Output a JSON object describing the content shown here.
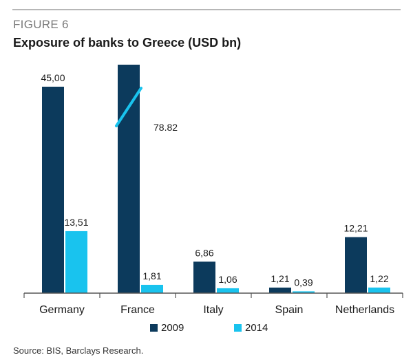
{
  "figure_label": "FIGURE 6",
  "source": "Source: BIS, Barclays Research.",
  "colors": {
    "s2009": "#0c3a5c",
    "s2014": "#19c3ee",
    "axis": "#555555",
    "rule": "#b7b7b7"
  },
  "chart_data": {
    "type": "bar",
    "title": "Exposure of banks to Greece (USD bn)",
    "xlabel": "",
    "ylabel": "",
    "categories": [
      "Germany",
      "France",
      "Italy",
      "Spain",
      "Netherlands"
    ],
    "series": [
      {
        "name": "2009",
        "values": [
          45.0,
          78.82,
          6.86,
          1.21,
          12.21
        ],
        "labels": [
          "45,00",
          "78.82",
          "6,86",
          "1,21",
          "12,21"
        ]
      },
      {
        "name": "2014",
        "values": [
          13.51,
          1.81,
          1.06,
          0.39,
          1.22
        ],
        "labels": [
          "13,51",
          "1,81",
          "1,06",
          "0,39",
          "1,22"
        ]
      }
    ],
    "ylim": [
      0,
      55
    ],
    "axis_break": {
      "category": "France",
      "series": "2009"
    },
    "legend": "bottom",
    "grid": false
  }
}
